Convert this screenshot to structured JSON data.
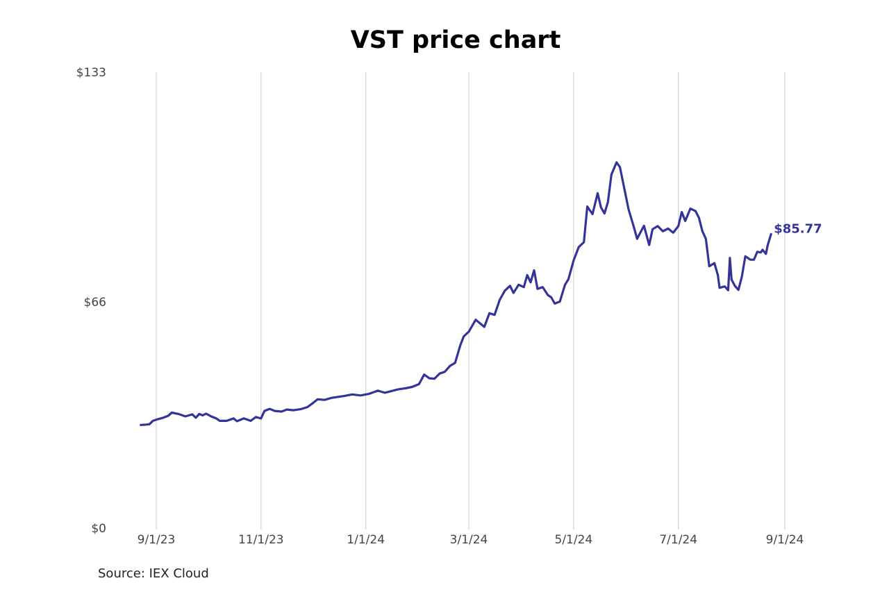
{
  "chart_data": {
    "type": "line",
    "title": "VST price chart",
    "source": "Source: IEX Cloud",
    "xlabel": "",
    "ylabel": "",
    "y_ticks": [
      {
        "value": 0,
        "label": "$0"
      },
      {
        "value": 66,
        "label": "$66"
      },
      {
        "value": 133,
        "label": "$133"
      }
    ],
    "x_ticks": [
      {
        "date": "2023-09-01",
        "label": "9/1/23"
      },
      {
        "date": "2023-11-01",
        "label": "11/1/23"
      },
      {
        "date": "2024-01-01",
        "label": "1/1/24"
      },
      {
        "date": "2024-03-01",
        "label": "3/1/24"
      },
      {
        "date": "2024-05-01",
        "label": "5/1/24"
      },
      {
        "date": "2024-07-01",
        "label": "7/1/24"
      },
      {
        "date": "2024-09-01",
        "label": "9/1/24"
      }
    ],
    "xlim": [
      "2023-08-23",
      "2024-09-05"
    ],
    "ylim": [
      0,
      133
    ],
    "grid": "vertical",
    "line_color": "#33339a",
    "end_label": "$85.77",
    "series": [
      {
        "points": [
          [
            "2023-08-23",
            30.1
          ],
          [
            "2023-08-26",
            30.2
          ],
          [
            "2023-08-28",
            30.3
          ],
          [
            "2023-08-30",
            31.3
          ],
          [
            "2023-09-02",
            31.8
          ],
          [
            "2023-09-05",
            32.2
          ],
          [
            "2023-09-08",
            32.8
          ],
          [
            "2023-09-10",
            33.7
          ],
          [
            "2023-09-14",
            33.3
          ],
          [
            "2023-09-18",
            32.6
          ],
          [
            "2023-09-22",
            33.2
          ],
          [
            "2023-09-24",
            32.2
          ],
          [
            "2023-09-26",
            33.3
          ],
          [
            "2023-09-28",
            32.9
          ],
          [
            "2023-09-30",
            33.4
          ],
          [
            "2023-10-03",
            32.6
          ],
          [
            "2023-10-06",
            32.0
          ],
          [
            "2023-10-08",
            31.3
          ],
          [
            "2023-10-12",
            31.3
          ],
          [
            "2023-10-16",
            32.0
          ],
          [
            "2023-10-18",
            31.2
          ],
          [
            "2023-10-22",
            32.0
          ],
          [
            "2023-10-26",
            31.3
          ],
          [
            "2023-10-29",
            32.4
          ],
          [
            "2023-11-01",
            32.0
          ],
          [
            "2023-11-03",
            34.2
          ],
          [
            "2023-11-06",
            34.8
          ],
          [
            "2023-11-09",
            34.2
          ],
          [
            "2023-11-13",
            34.0
          ],
          [
            "2023-11-16",
            34.6
          ],
          [
            "2023-11-20",
            34.4
          ],
          [
            "2023-11-24",
            34.7
          ],
          [
            "2023-11-28",
            35.3
          ],
          [
            "2023-12-01",
            36.4
          ],
          [
            "2023-12-04",
            37.6
          ],
          [
            "2023-12-08",
            37.4
          ],
          [
            "2023-12-12",
            38.0
          ],
          [
            "2023-12-16",
            38.3
          ],
          [
            "2023-12-20",
            38.6
          ],
          [
            "2023-12-24",
            39.0
          ],
          [
            "2023-12-29",
            38.7
          ],
          [
            "2024-01-03",
            39.2
          ],
          [
            "2024-01-08",
            40.1
          ],
          [
            "2024-01-12",
            39.5
          ],
          [
            "2024-01-16",
            40.0
          ],
          [
            "2024-01-20",
            40.5
          ],
          [
            "2024-01-24",
            40.8
          ],
          [
            "2024-01-28",
            41.2
          ],
          [
            "2024-02-01",
            42.0
          ],
          [
            "2024-02-04",
            44.8
          ],
          [
            "2024-02-07",
            43.7
          ],
          [
            "2024-02-10",
            43.6
          ],
          [
            "2024-02-13",
            45.1
          ],
          [
            "2024-02-16",
            45.6
          ],
          [
            "2024-02-19",
            47.3
          ],
          [
            "2024-02-22",
            48.2
          ],
          [
            "2024-02-25",
            53.3
          ],
          [
            "2024-02-27",
            55.9
          ],
          [
            "2024-03-01",
            57.3
          ],
          [
            "2024-03-05",
            60.8
          ],
          [
            "2024-03-10",
            58.7
          ],
          [
            "2024-03-13",
            62.7
          ],
          [
            "2024-03-16",
            62.2
          ],
          [
            "2024-03-19",
            66.6
          ],
          [
            "2024-03-22",
            69.3
          ],
          [
            "2024-03-25",
            70.7
          ],
          [
            "2024-03-27",
            68.6
          ],
          [
            "2024-03-30",
            71.0
          ],
          [
            "2024-04-02",
            70.3
          ],
          [
            "2024-04-04",
            73.8
          ],
          [
            "2024-04-06",
            71.7
          ],
          [
            "2024-04-08",
            75.2
          ],
          [
            "2024-04-10",
            69.8
          ],
          [
            "2024-04-13",
            70.3
          ],
          [
            "2024-04-16",
            68.0
          ],
          [
            "2024-04-18",
            67.3
          ],
          [
            "2024-04-20",
            65.5
          ],
          [
            "2024-04-23",
            66.1
          ],
          [
            "2024-04-26",
            71.0
          ],
          [
            "2024-04-28",
            72.6
          ],
          [
            "2024-05-01",
            78.1
          ],
          [
            "2024-05-04",
            82.0
          ],
          [
            "2024-05-07",
            83.4
          ],
          [
            "2024-05-09",
            93.8
          ],
          [
            "2024-05-12",
            91.6
          ],
          [
            "2024-05-15",
            97.7
          ],
          [
            "2024-05-17",
            93.5
          ],
          [
            "2024-05-19",
            91.8
          ],
          [
            "2024-05-21",
            95.1
          ],
          [
            "2024-05-23",
            103.1
          ],
          [
            "2024-05-26",
            106.7
          ],
          [
            "2024-05-28",
            105.3
          ],
          [
            "2024-06-02",
            93.0
          ],
          [
            "2024-06-05",
            88.0
          ],
          [
            "2024-06-07",
            84.4
          ],
          [
            "2024-06-11",
            88.2
          ],
          [
            "2024-06-14",
            82.6
          ],
          [
            "2024-06-16",
            87.2
          ],
          [
            "2024-06-19",
            88.1
          ],
          [
            "2024-06-22",
            86.6
          ],
          [
            "2024-06-25",
            87.4
          ],
          [
            "2024-06-28",
            86.2
          ],
          [
            "2024-07-01",
            88.1
          ],
          [
            "2024-07-03",
            92.2
          ],
          [
            "2024-07-05",
            89.6
          ],
          [
            "2024-07-08",
            93.2
          ],
          [
            "2024-07-11",
            92.5
          ],
          [
            "2024-07-13",
            90.5
          ],
          [
            "2024-07-15",
            86.6
          ],
          [
            "2024-07-17",
            84.4
          ],
          [
            "2024-07-19",
            76.4
          ],
          [
            "2024-07-22",
            77.3
          ],
          [
            "2024-07-24",
            73.8
          ],
          [
            "2024-07-25",
            70.1
          ],
          [
            "2024-07-28",
            70.5
          ],
          [
            "2024-07-30",
            69.4
          ],
          [
            "2024-07-31",
            78.8
          ],
          [
            "2024-08-01",
            72.5
          ],
          [
            "2024-08-03",
            70.6
          ],
          [
            "2024-08-05",
            69.5
          ],
          [
            "2024-08-07",
            73.4
          ],
          [
            "2024-08-09",
            79.3
          ],
          [
            "2024-08-12",
            78.3
          ],
          [
            "2024-08-14",
            78.3
          ],
          [
            "2024-08-16",
            80.6
          ],
          [
            "2024-08-18",
            80.4
          ],
          [
            "2024-08-19",
            81.2
          ],
          [
            "2024-08-21",
            80.0
          ],
          [
            "2024-08-22",
            82.5
          ],
          [
            "2024-08-24",
            85.77
          ]
        ]
      }
    ]
  }
}
